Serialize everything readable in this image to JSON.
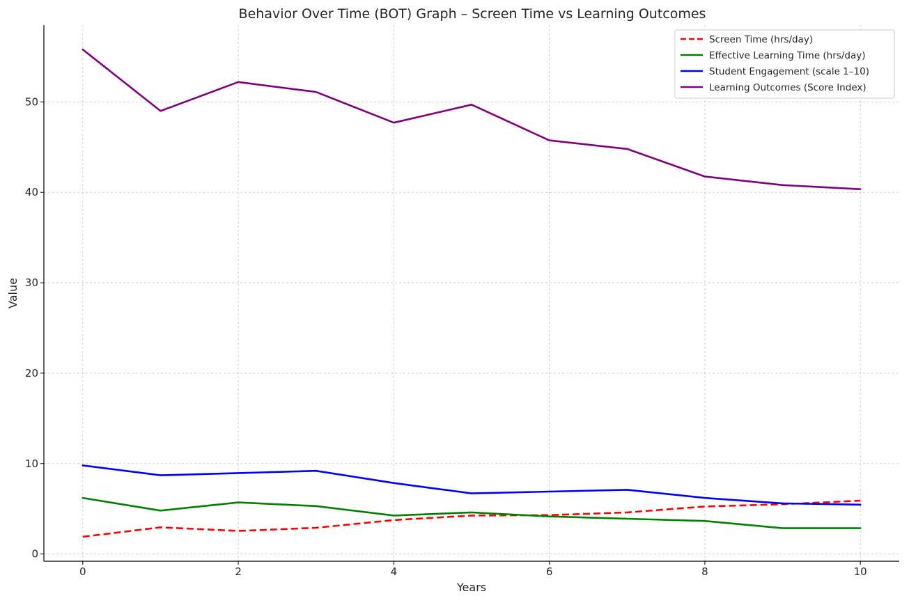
{
  "chart_data": {
    "type": "line",
    "title": "Behavior Over Time (BOT) Graph – Screen Time vs Learning Outcomes",
    "xlabel": "Years",
    "ylabel": "Value",
    "xlim": [
      -0.5,
      10.5
    ],
    "ylim": [
      -0.8,
      58.5
    ],
    "xticks": [
      0,
      2,
      4,
      6,
      8,
      10
    ],
    "yticks": [
      0,
      10,
      20,
      30,
      40,
      50
    ],
    "grid": true,
    "legend_position": "top-right",
    "x": [
      0,
      1,
      2,
      3,
      4,
      5,
      6,
      7,
      8,
      9,
      10
    ],
    "series": [
      {
        "name": "Screen Time (hrs/day)",
        "color": "#ff0000",
        "dashed": true,
        "values": [
          1.9,
          2.95,
          2.55,
          2.9,
          3.75,
          4.25,
          4.3,
          4.6,
          5.25,
          5.5,
          5.9
        ]
      },
      {
        "name": "Effective Learning Time (hrs/day)",
        "color": "#008000",
        "dashed": false,
        "values": [
          6.2,
          4.8,
          5.7,
          5.3,
          4.25,
          4.6,
          4.15,
          3.9,
          3.65,
          2.85,
          2.85
        ]
      },
      {
        "name": "Student Engagement (scale 1–10)",
        "color": "#0000ff",
        "dashed": false,
        "values": [
          9.8,
          8.7,
          8.95,
          9.2,
          7.85,
          6.7,
          6.9,
          7.1,
          6.2,
          5.6,
          5.45
        ]
      },
      {
        "name": "Learning Outcomes (Score Index)",
        "color": "#800080",
        "dashed": false,
        "values": [
          55.8,
          49.0,
          52.2,
          51.1,
          47.7,
          49.7,
          45.75,
          44.8,
          41.75,
          40.8,
          40.35
        ]
      }
    ]
  }
}
